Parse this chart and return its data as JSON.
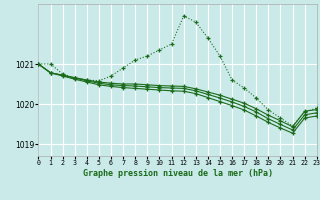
{
  "bg_color": "#caeaea",
  "grid_color": "#ffffff",
  "line_color": "#1a6b1a",
  "title": "Graphe pression niveau de la mer (hPa)",
  "xlim": [
    0,
    23
  ],
  "ylim": [
    1018.7,
    1022.5
  ],
  "yticks": [
    1019,
    1020,
    1021
  ],
  "xticks": [
    0,
    1,
    2,
    3,
    4,
    5,
    6,
    7,
    8,
    9,
    10,
    11,
    12,
    13,
    14,
    15,
    16,
    17,
    18,
    19,
    20,
    21,
    22,
    23
  ],
  "series": [
    {
      "x": [
        0,
        1,
        2,
        3,
        4,
        5,
        6,
        7,
        8,
        9,
        10,
        11,
        12,
        13,
        14,
        15,
        16,
        17,
        18,
        19,
        20,
        21,
        22,
        23
      ],
      "y": [
        1021.0,
        1021.0,
        1020.75,
        1020.65,
        1020.6,
        1020.58,
        1020.7,
        1020.9,
        1021.1,
        1021.2,
        1021.35,
        1021.5,
        1022.2,
        1022.05,
        1021.65,
        1021.2,
        1020.6,
        1020.4,
        1020.15,
        1019.85,
        1019.65,
        1019.45,
        1019.8,
        1019.9
      ],
      "linestyle": "dotted",
      "marker": "+"
    },
    {
      "x": [
        0,
        1,
        2,
        3,
        4,
        5,
        6,
        7,
        8,
        9,
        10,
        11,
        12,
        13,
        14,
        15,
        16,
        17,
        18,
        19,
        20,
        21,
        22,
        23
      ],
      "y": [
        1021.0,
        1020.78,
        1020.72,
        1020.66,
        1020.6,
        1020.55,
        1020.52,
        1020.5,
        1020.5,
        1020.48,
        1020.46,
        1020.45,
        1020.44,
        1020.38,
        1020.3,
        1020.22,
        1020.12,
        1020.02,
        1019.88,
        1019.72,
        1019.58,
        1019.43,
        1019.82,
        1019.86
      ],
      "linestyle": "solid",
      "marker": "+"
    },
    {
      "x": [
        0,
        1,
        2,
        3,
        4,
        5,
        6,
        7,
        8,
        9,
        10,
        11,
        12,
        13,
        14,
        15,
        16,
        17,
        18,
        19,
        20,
        21,
        22,
        23
      ],
      "y": [
        1021.0,
        1020.78,
        1020.72,
        1020.65,
        1020.58,
        1020.52,
        1020.48,
        1020.46,
        1020.45,
        1020.43,
        1020.41,
        1020.4,
        1020.39,
        1020.33,
        1020.24,
        1020.15,
        1020.05,
        1019.94,
        1019.8,
        1019.63,
        1019.49,
        1019.35,
        1019.73,
        1019.78
      ],
      "linestyle": "solid",
      "marker": "+"
    },
    {
      "x": [
        0,
        1,
        2,
        3,
        4,
        5,
        6,
        7,
        8,
        9,
        10,
        11,
        12,
        13,
        14,
        15,
        16,
        17,
        18,
        19,
        20,
        21,
        22,
        23
      ],
      "y": [
        1021.0,
        1020.78,
        1020.7,
        1020.62,
        1020.55,
        1020.48,
        1020.44,
        1020.41,
        1020.39,
        1020.37,
        1020.35,
        1020.33,
        1020.32,
        1020.26,
        1020.16,
        1020.06,
        1019.96,
        1019.85,
        1019.7,
        1019.54,
        1019.4,
        1019.27,
        1019.65,
        1019.7
      ],
      "linestyle": "solid",
      "marker": "+"
    }
  ]
}
